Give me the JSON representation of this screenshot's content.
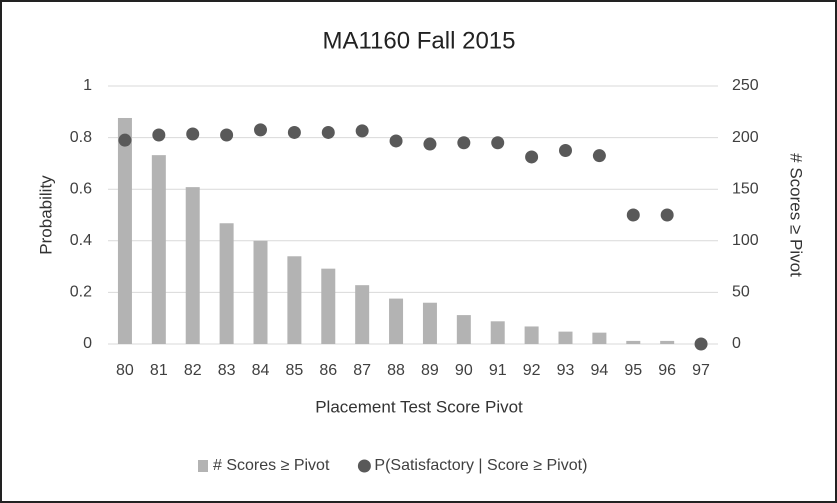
{
  "chart_data": {
    "type": "bar",
    "title": "MA1160 Fall 2015",
    "x_label": "Placement Test Score Pivot",
    "y_label": "Probability",
    "y2_label": "# Scores ≥ Pivot",
    "categories": [
      "80",
      "81",
      "82",
      "83",
      "84",
      "85",
      "86",
      "87",
      "88",
      "89",
      "90",
      "91",
      "92",
      "93",
      "94",
      "95",
      "96",
      "97"
    ],
    "series": [
      {
        "name": "# Scores ≥ Pivot",
        "type": "bar",
        "axis": "y2",
        "color": "#b3b3b3",
        "values": [
          219,
          183,
          152,
          117,
          100,
          85,
          73,
          57,
          44,
          40,
          28,
          22,
          17,
          12,
          11,
          3,
          3,
          0
        ]
      },
      {
        "name": "P(Satisfactory | Score ≥ Pivot)",
        "type": "scatter",
        "axis": "y",
        "color": "#595959",
        "values": [
          0.79,
          0.81,
          0.814,
          0.81,
          0.83,
          0.82,
          0.82,
          0.826,
          0.787,
          0.775,
          0.78,
          0.78,
          0.725,
          0.75,
          0.73,
          0.5,
          0.5,
          0
        ]
      }
    ],
    "ylim": [
      0,
      1
    ],
    "yticks": [
      0,
      0.2,
      0.4,
      0.6,
      0.8,
      1
    ],
    "y2lim": [
      0,
      250
    ],
    "y2ticks": [
      0,
      50,
      100,
      150,
      200,
      250
    ],
    "grid": true,
    "legend": "bottom"
  }
}
